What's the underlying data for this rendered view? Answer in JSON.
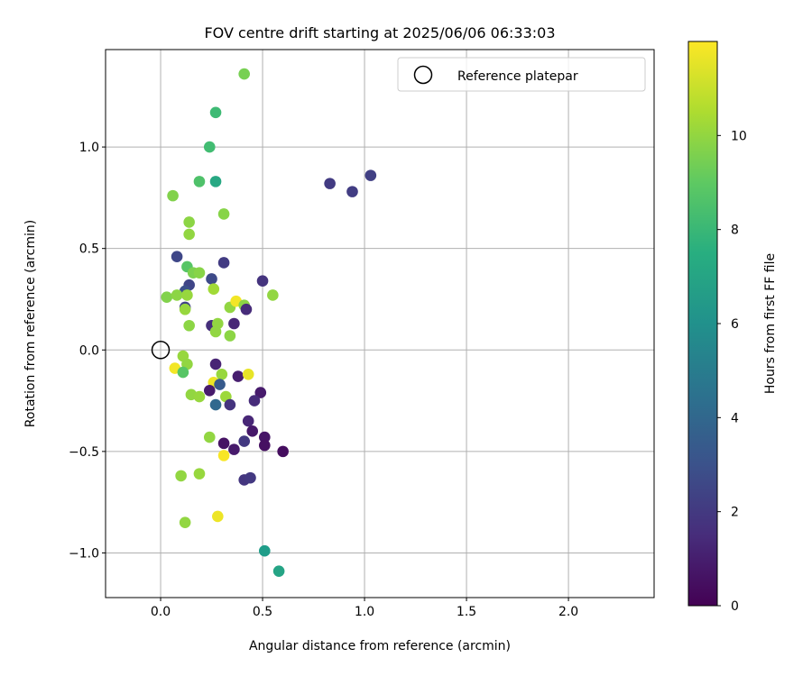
{
  "chart_data": {
    "type": "scatter",
    "title": "FOV centre drift starting at 2025/06/06 06:33:03",
    "xlabel": "Angular distance from reference (arcmin)",
    "ylabel": "Rotation from reference (arcmin)",
    "xlim": [
      -0.27,
      2.42
    ],
    "ylim": [
      -1.22,
      1.48
    ],
    "xticks": [
      "0.0",
      "0.5",
      "1.0",
      "1.5",
      "2.0"
    ],
    "yticks": [
      "−1.0",
      "−0.5",
      "0.0",
      "0.5",
      "1.0"
    ],
    "grid": true,
    "legend": {
      "placement": "top-right",
      "entries": [
        "Reference platepar"
      ]
    },
    "reference_point": {
      "x": 0.0,
      "y": 0.0
    },
    "colorbar": {
      "label": "Hours from first FF file",
      "colormap": "viridis",
      "range": [
        0,
        12
      ],
      "ticks": [
        "0",
        "2",
        "4",
        "6",
        "8",
        "10"
      ]
    },
    "series": [
      {
        "points": [
          {
            "x": 0.41,
            "y": 1.36,
            "h": 9.5
          },
          {
            "x": 0.27,
            "y": 1.17,
            "h": 8.2
          },
          {
            "x": 0.24,
            "y": 1.0,
            "h": 8.3
          },
          {
            "x": 0.19,
            "y": 0.83,
            "h": 8.6
          },
          {
            "x": 0.27,
            "y": 0.83,
            "h": 7.2
          },
          {
            "x": 0.06,
            "y": 0.76,
            "h": 9.7
          },
          {
            "x": 0.31,
            "y": 0.67,
            "h": 9.8
          },
          {
            "x": 0.14,
            "y": 0.63,
            "h": 9.9
          },
          {
            "x": 0.14,
            "y": 0.57,
            "h": 10.0
          },
          {
            "x": 0.83,
            "y": 0.82,
            "h": 2.1
          },
          {
            "x": 0.94,
            "y": 0.78,
            "h": 2.2
          },
          {
            "x": 1.03,
            "y": 0.86,
            "h": 2.3
          },
          {
            "x": 0.08,
            "y": 0.46,
            "h": 2.6
          },
          {
            "x": 0.31,
            "y": 0.43,
            "h": 2.1
          },
          {
            "x": 0.13,
            "y": 0.41,
            "h": 8.8
          },
          {
            "x": 0.16,
            "y": 0.38,
            "h": 9.6
          },
          {
            "x": 0.19,
            "y": 0.38,
            "h": 9.8
          },
          {
            "x": 0.25,
            "y": 0.35,
            "h": 2.7
          },
          {
            "x": 0.5,
            "y": 0.34,
            "h": 1.8
          },
          {
            "x": 0.14,
            "y": 0.32,
            "h": 2.5
          },
          {
            "x": 0.12,
            "y": 0.29,
            "h": 3.0
          },
          {
            "x": 0.26,
            "y": 0.3,
            "h": 10.3
          },
          {
            "x": 0.03,
            "y": 0.26,
            "h": 9.7
          },
          {
            "x": 0.08,
            "y": 0.27,
            "h": 9.9
          },
          {
            "x": 0.13,
            "y": 0.27,
            "h": 10.1
          },
          {
            "x": 0.55,
            "y": 0.27,
            "h": 10.0
          },
          {
            "x": 0.12,
            "y": 0.21,
            "h": 2.4
          },
          {
            "x": 0.12,
            "y": 0.2,
            "h": 10.1
          },
          {
            "x": 0.34,
            "y": 0.21,
            "h": 10.0
          },
          {
            "x": 0.37,
            "y": 0.24,
            "h": 11.8
          },
          {
            "x": 0.41,
            "y": 0.22,
            "h": 9.9
          },
          {
            "x": 0.42,
            "y": 0.2,
            "h": 1.5
          },
          {
            "x": 0.14,
            "y": 0.12,
            "h": 9.9
          },
          {
            "x": 0.25,
            "y": 0.12,
            "h": 1.6
          },
          {
            "x": 0.28,
            "y": 0.13,
            "h": 10.0
          },
          {
            "x": 0.27,
            "y": 0.09,
            "h": 10.0
          },
          {
            "x": 0.36,
            "y": 0.13,
            "h": 1.3
          },
          {
            "x": 0.34,
            "y": 0.07,
            "h": 9.9
          },
          {
            "x": 0.11,
            "y": -0.03,
            "h": 10.1
          },
          {
            "x": 0.07,
            "y": -0.09,
            "h": 11.8
          },
          {
            "x": 0.13,
            "y": -0.07,
            "h": 10.0
          },
          {
            "x": 0.11,
            "y": -0.11,
            "h": 8.8
          },
          {
            "x": 0.27,
            "y": -0.07,
            "h": 1.2
          },
          {
            "x": 0.3,
            "y": -0.12,
            "h": 10.1
          },
          {
            "x": 0.38,
            "y": -0.13,
            "h": 1.0
          },
          {
            "x": 0.43,
            "y": -0.12,
            "h": 11.6
          },
          {
            "x": 0.26,
            "y": -0.16,
            "h": 11.7
          },
          {
            "x": 0.29,
            "y": -0.17,
            "h": 3.4
          },
          {
            "x": 0.24,
            "y": -0.2,
            "h": 0.9
          },
          {
            "x": 0.15,
            "y": -0.22,
            "h": 10.0
          },
          {
            "x": 0.19,
            "y": -0.23,
            "h": 10.1
          },
          {
            "x": 0.32,
            "y": -0.23,
            "h": 10.2
          },
          {
            "x": 0.49,
            "y": -0.21,
            "h": 0.9
          },
          {
            "x": 0.46,
            "y": -0.25,
            "h": 1.5
          },
          {
            "x": 0.27,
            "y": -0.27,
            "h": 4.0
          },
          {
            "x": 0.34,
            "y": -0.27,
            "h": 1.8
          },
          {
            "x": 0.43,
            "y": -0.35,
            "h": 1.3
          },
          {
            "x": 0.45,
            "y": -0.4,
            "h": 0.8
          },
          {
            "x": 0.24,
            "y": -0.43,
            "h": 10.0
          },
          {
            "x": 0.41,
            "y": -0.45,
            "h": 2.0
          },
          {
            "x": 0.51,
            "y": -0.43,
            "h": 0.7
          },
          {
            "x": 0.31,
            "y": -0.46,
            "h": 0.6
          },
          {
            "x": 0.36,
            "y": -0.49,
            "h": 0.9
          },
          {
            "x": 0.51,
            "y": -0.47,
            "h": 0.5
          },
          {
            "x": 0.6,
            "y": -0.5,
            "h": 0.4
          },
          {
            "x": 0.31,
            "y": -0.52,
            "h": 11.9
          },
          {
            "x": 0.1,
            "y": -0.62,
            "h": 10.0
          },
          {
            "x": 0.19,
            "y": -0.61,
            "h": 10.1
          },
          {
            "x": 0.41,
            "y": -0.64,
            "h": 1.9
          },
          {
            "x": 0.44,
            "y": -0.63,
            "h": 2.0
          },
          {
            "x": 0.28,
            "y": -0.82,
            "h": 11.7
          },
          {
            "x": 0.12,
            "y": -0.85,
            "h": 10.0
          },
          {
            "x": 0.51,
            "y": -0.99,
            "h": 6.6
          },
          {
            "x": 0.58,
            "y": -1.09,
            "h": 7.0
          }
        ]
      }
    ]
  }
}
